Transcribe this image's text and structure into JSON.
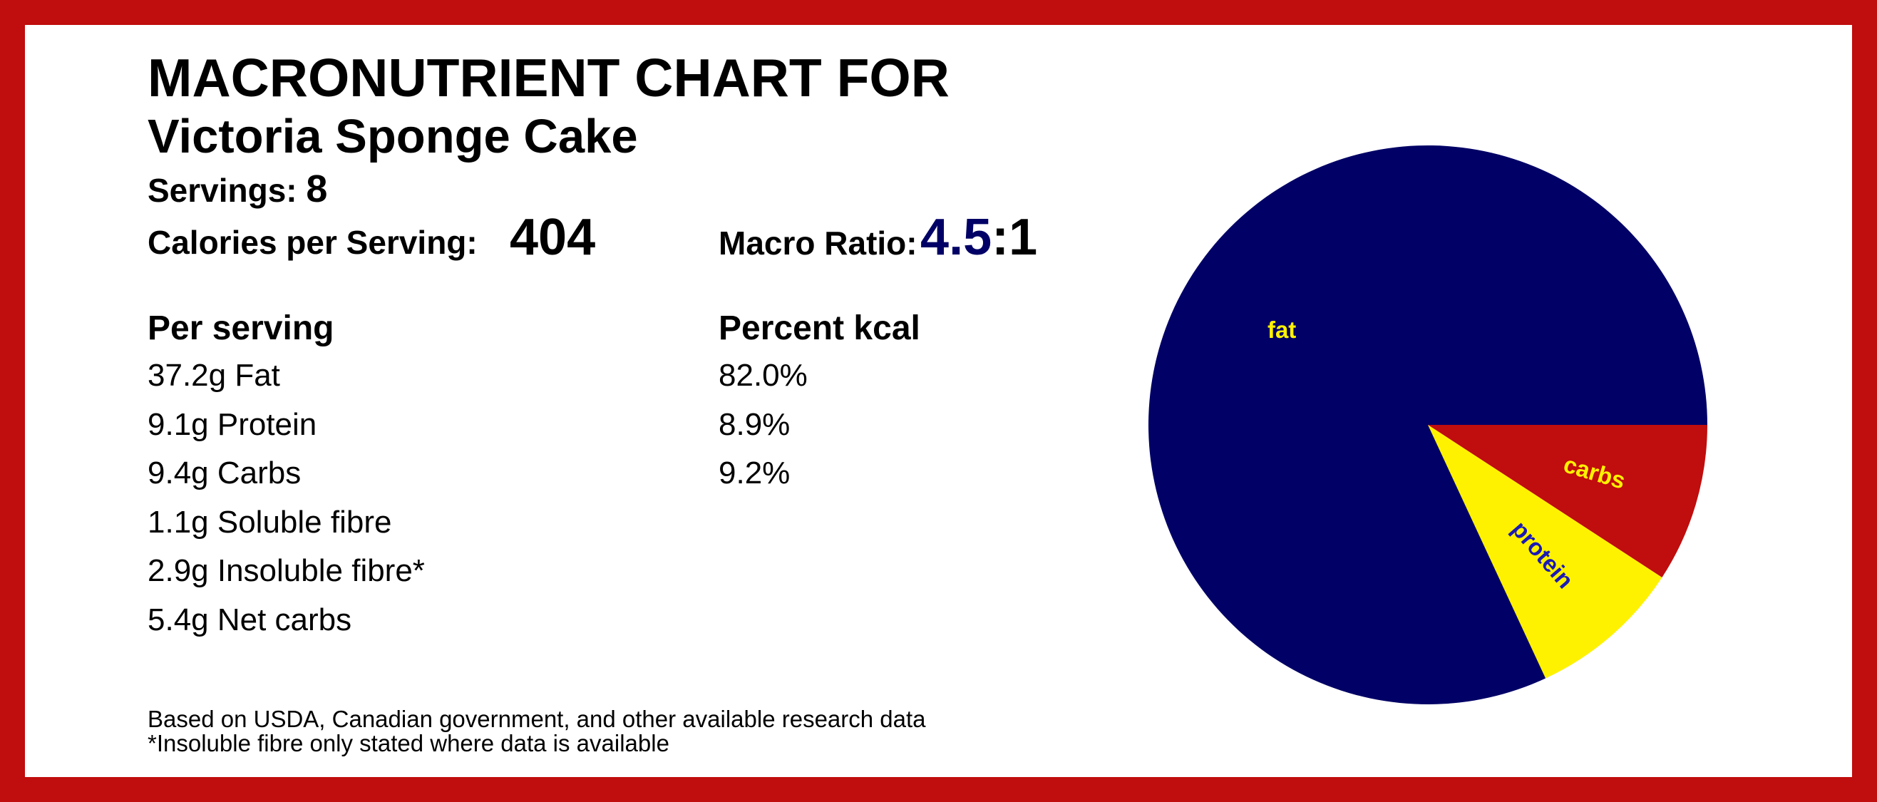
{
  "header": {
    "title": "MACRONUTRIENT CHART FOR",
    "recipe": "Victoria Sponge Cake",
    "servings_label": "Servings:",
    "servings_value": "8",
    "calories_label": "Calories per Serving:",
    "calories_value": "404",
    "ratio_label": "Macro Ratio:",
    "ratio_first": "4.5",
    "ratio_rest": ":1"
  },
  "per_serving": {
    "heading": "Per serving",
    "rows": [
      "37.2g Fat",
      "9.1g Protein",
      "9.4g Carbs",
      "1.1g Soluble fibre",
      "2.9g Insoluble fibre*",
      "5.4g Net carbs"
    ]
  },
  "percent_kcal": {
    "heading": "Percent kcal",
    "rows": [
      "82.0%",
      "8.9%",
      "9.2%"
    ]
  },
  "footnotes": [
    "Based on USDA, Canadian government, and other available research data",
    "*Insoluble fibre only stated where data is available"
  ],
  "colors": {
    "frame": "#c00d0d",
    "fat": "#000066",
    "protein": "#fff200",
    "carbs": "#c00d0d",
    "label_on_dark": "#fff200",
    "label_on_yellow": "#1a1ab5"
  },
  "chart_data": {
    "type": "pie",
    "categories": [
      "fat",
      "protein",
      "carbs"
    ],
    "values": [
      82.0,
      8.9,
      9.2
    ],
    "start_angle_deg": 0,
    "direction": "clockwise"
  }
}
